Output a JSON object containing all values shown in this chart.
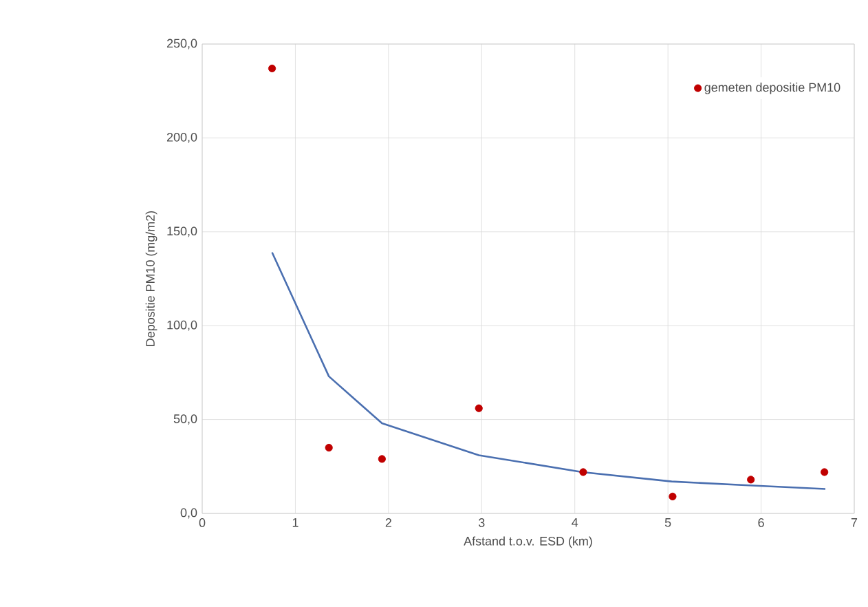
{
  "chart_data": {
    "type": "scatter",
    "xlabel": "Afstand t.o.v. ESD (km)",
    "ylabel": "Depositie PM10 (mg/m2)",
    "xlim": [
      0,
      7
    ],
    "xticks": [
      0,
      1,
      2,
      3,
      4,
      5,
      6,
      7
    ],
    "ylim": [
      0,
      250
    ],
    "yticks": [
      {
        "value": 0,
        "label": "0,0"
      },
      {
        "value": 50,
        "label": "50,0"
      },
      {
        "value": 100,
        "label": "100,0"
      },
      {
        "value": 150,
        "label": "150,0"
      },
      {
        "value": 200,
        "label": "200,0"
      },
      {
        "value": 250,
        "label": "250,0"
      }
    ],
    "grid": true,
    "legend": "top right",
    "series": [
      {
        "name": "gemeten depositie PM10",
        "marker": "circle",
        "color": "#c00000",
        "x": [
          0.75,
          1.36,
          1.93,
          2.97,
          4.09,
          5.05,
          5.89,
          6.68
        ],
        "values": [
          237,
          35,
          29,
          56,
          22,
          9,
          18,
          22
        ]
      },
      {
        "type": "line",
        "color": "#4a6fb0",
        "x": [
          0.75,
          1.36,
          1.93,
          2.97,
          4.08,
          5.04,
          5.83,
          6.69
        ],
        "values": [
          139,
          73,
          48,
          31,
          22,
          17,
          15,
          13
        ]
      }
    ]
  }
}
